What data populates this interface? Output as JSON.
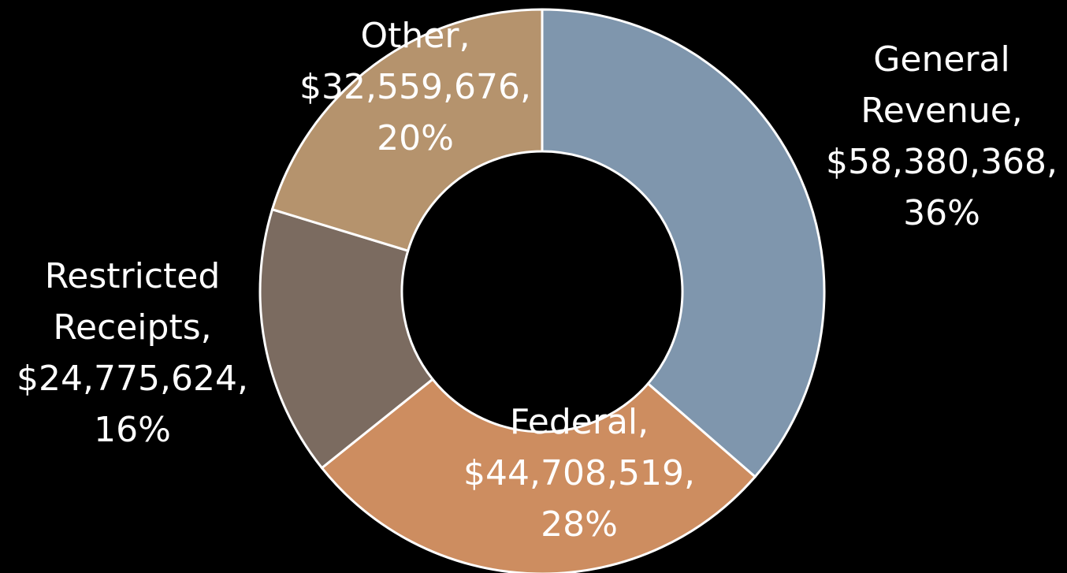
{
  "chart_data": {
    "type": "donut",
    "categories": [
      "General Revenue,",
      "Federal,",
      "Restricted Receipts,",
      "Other,"
    ],
    "values": [
      58380368,
      44708519,
      24775624,
      32559676
    ],
    "value_labels": [
      "$58,380,368,",
      "$44,708,519,",
      "$24,775,624,",
      "$32,559,676,"
    ],
    "percent_labels": [
      "36%",
      "28%",
      "16%",
      "20%"
    ],
    "colors": [
      "#7f96ad",
      "#cd8d60",
      "#7b6b60",
      "#b5936d"
    ]
  }
}
